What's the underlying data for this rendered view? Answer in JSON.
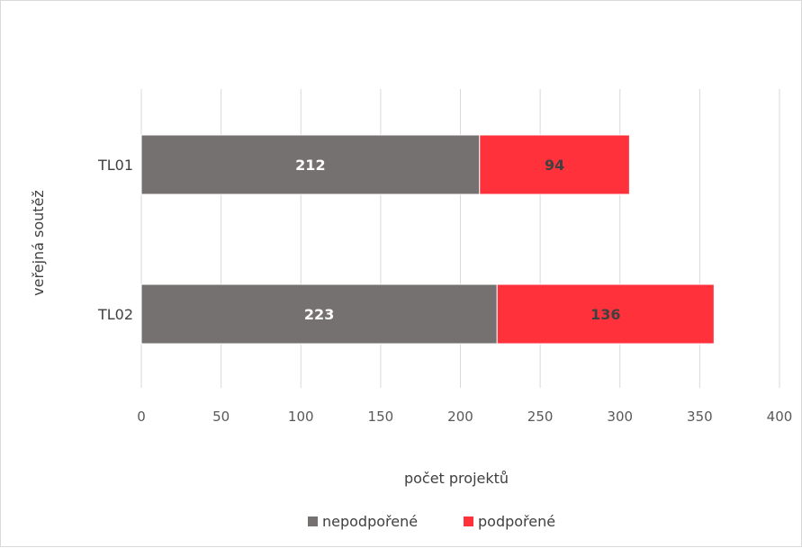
{
  "chart_data": {
    "type": "bar",
    "orientation": "horizontal",
    "stacked": true,
    "categories": [
      "TL01",
      "TL02"
    ],
    "series": [
      {
        "name": "nepodpořené",
        "values": [
          212,
          223
        ],
        "color": "#767171",
        "label_color": "#ffffff"
      },
      {
        "name": "podpořené",
        "values": [
          94,
          136
        ],
        "color": "#ff323c",
        "label_color": "#404040"
      }
    ],
    "xlabel": "počet projektů",
    "ylabel": "veřejná soutěž",
    "xlim": [
      0,
      400
    ],
    "xticks": [
      "0",
      "50",
      "100",
      "150",
      "200",
      "250",
      "300",
      "350",
      "400"
    ],
    "grid": true,
    "legend": "bottom"
  }
}
